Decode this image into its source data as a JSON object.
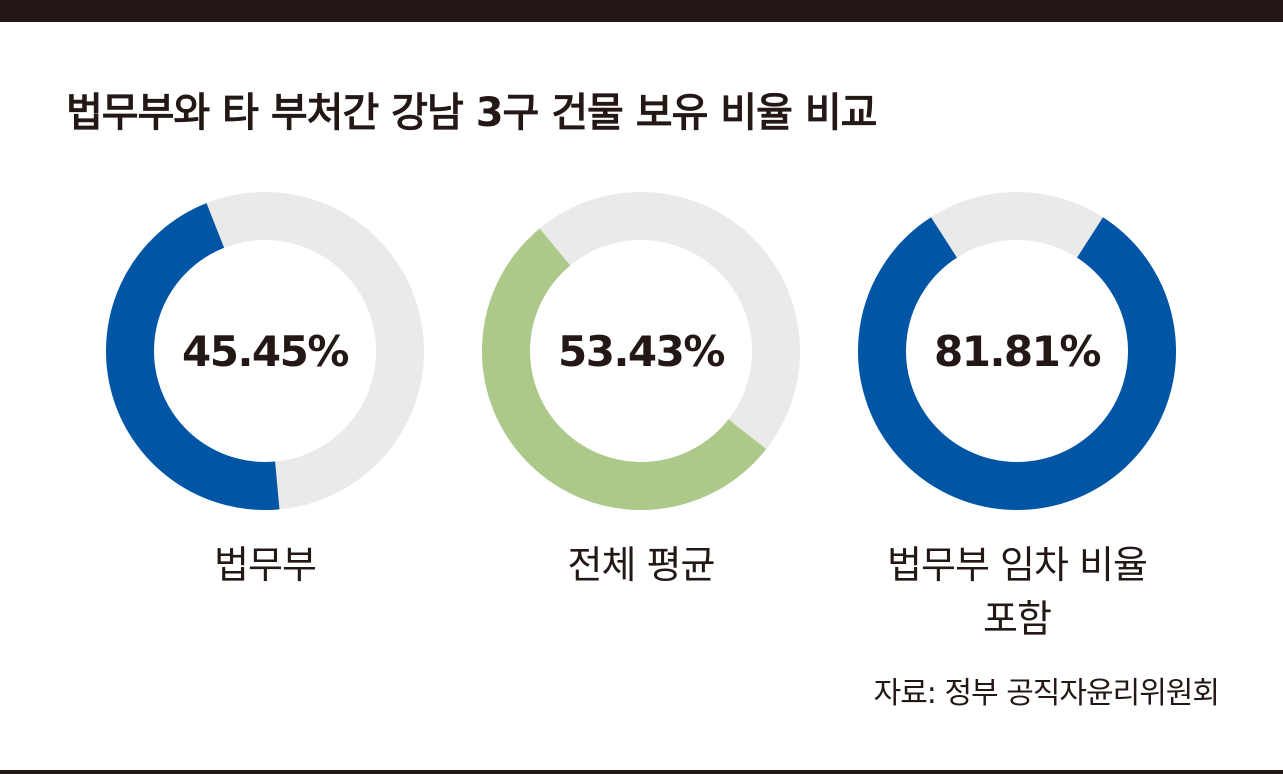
{
  "title": "법무부와 타 부처간 강남 3구 건물 보유 비율 비교",
  "source": "자료: 정부 공직자윤리위원회",
  "colors": {
    "bar": "#231815",
    "track": "#eaeaea",
    "text": "#231815"
  },
  "chart_data": [
    {
      "type": "pie",
      "label": "법무부",
      "value": 45.45,
      "value_text": "45.45%",
      "color": "#0055a5"
    },
    {
      "type": "pie",
      "label": "전체 평균",
      "value": 53.43,
      "value_text": "53.43%",
      "color": "#acc98a"
    },
    {
      "type": "pie",
      "label": "법무부 임차 비율\n포함",
      "value": 81.81,
      "value_text": "81.81%",
      "color": "#0055a5"
    }
  ]
}
